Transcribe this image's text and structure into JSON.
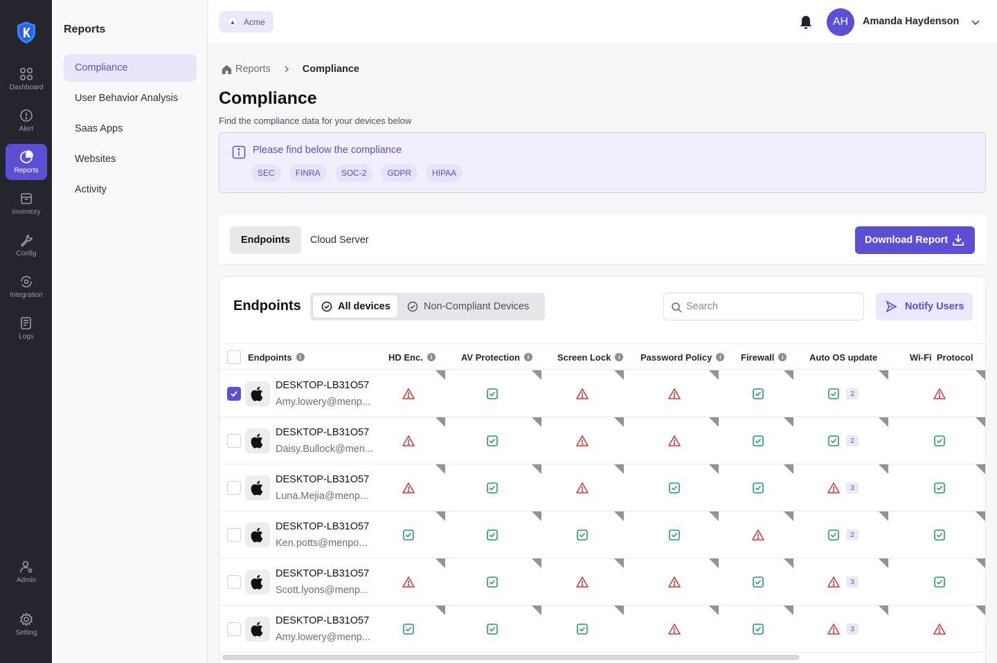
{
  "rail": {
    "items": [
      {
        "label": "Dashboard",
        "icon": "grid-icon"
      },
      {
        "label": "Alert",
        "icon": "alert-icon"
      },
      {
        "label": "Reports",
        "icon": "pie-chart-icon"
      },
      {
        "label": "Inventory",
        "icon": "inventory-box-icon"
      },
      {
        "label": "Config",
        "icon": "wrench-icon"
      },
      {
        "label": "Integration",
        "icon": "integration-icon"
      },
      {
        "label": "Logs",
        "icon": "logs-icon"
      },
      {
        "label": "Admin",
        "icon": "admin-user-icon"
      },
      {
        "label": "Setting",
        "icon": "gear-icon"
      }
    ],
    "active": "Reports"
  },
  "sidebar": {
    "title": "Reports",
    "items": [
      {
        "label": "Compliance"
      },
      {
        "label": "User Behavior Analysis"
      },
      {
        "label": "Saas Apps"
      },
      {
        "label": "Websites"
      },
      {
        "label": "Activity"
      }
    ],
    "active": "Compliance"
  },
  "topbar": {
    "org": "Acme",
    "avatar_initials": "AH",
    "user_name": "Amanda Haydenson"
  },
  "breadcrumb": {
    "root": "Reports",
    "current": "Compliance"
  },
  "page": {
    "title": "Compliance",
    "subtitle": "Find the compliance data for your devices below"
  },
  "info": {
    "text": "Please find below the compliance",
    "standards": [
      "SEC",
      "FINRA",
      "SOC-2",
      "GDPR",
      "HIPAA"
    ]
  },
  "tabs": {
    "items": [
      "Endpoints",
      "Cloud Server"
    ],
    "active": "Endpoints",
    "download_label": "Download Report"
  },
  "table": {
    "title": "Endpoints",
    "filters": [
      "All devices",
      "Non-Compliant Devices"
    ],
    "active_filter": "All devices",
    "search_placeholder": "Search",
    "notify_label": "Notify Users",
    "columns": [
      "Endpoints",
      "HD Enc.",
      "AV Protection",
      "Screen Lock",
      "Password Policy",
      "Firewall",
      "Auto OS update",
      "Wi-Fi  Protocol"
    ],
    "rows": [
      {
        "device": "DESKTOP-LB31O57",
        "user": "Amy.lowery@menp...",
        "checked": true,
        "hd": "fail",
        "av": "pass",
        "lock": "fail",
        "pwd": "fail",
        "fw": "pass",
        "os": "pass",
        "os_count": "2",
        "wifi": "fail"
      },
      {
        "device": "DESKTOP-LB31O57",
        "user": "Daisy.Bullock@men...",
        "checked": false,
        "hd": "fail",
        "av": "pass",
        "lock": "fail",
        "pwd": "fail",
        "fw": "pass",
        "os": "pass",
        "os_count": "2",
        "wifi": "pass"
      },
      {
        "device": "DESKTOP-LB31O57",
        "user": "Luna.Mejia@menp...",
        "checked": false,
        "hd": "fail",
        "av": "pass",
        "lock": "fail",
        "pwd": "pass",
        "fw": "pass",
        "os": "fail",
        "os_count": "3",
        "wifi": "pass"
      },
      {
        "device": "DESKTOP-LB31O57",
        "user": "Ken.potts@menpo...",
        "checked": false,
        "hd": "pass",
        "av": "pass",
        "lock": "pass",
        "pwd": "pass",
        "fw": "fail",
        "os": "pass",
        "os_count": "2",
        "wifi": "pass"
      },
      {
        "device": "DESKTOP-LB31O57",
        "user": "Scott.lyons@menp...",
        "checked": false,
        "hd": "fail",
        "av": "pass",
        "lock": "fail",
        "pwd": "fail",
        "fw": "pass",
        "os": "fail",
        "os_count": "3",
        "wifi": "pass"
      },
      {
        "device": "DESKTOP-LB31O57",
        "user": "Amy.lowery@menp...",
        "checked": false,
        "hd": "pass",
        "av": "pass",
        "lock": "pass",
        "pwd": "fail",
        "fw": "pass",
        "os": "fail",
        "os_count": "3",
        "wifi": "fail"
      }
    ]
  },
  "colors": {
    "accent": "#5c4fd6",
    "pass": "#1f9d6b",
    "fail": "#d23a3a",
    "rail_bg": "#24262d"
  }
}
